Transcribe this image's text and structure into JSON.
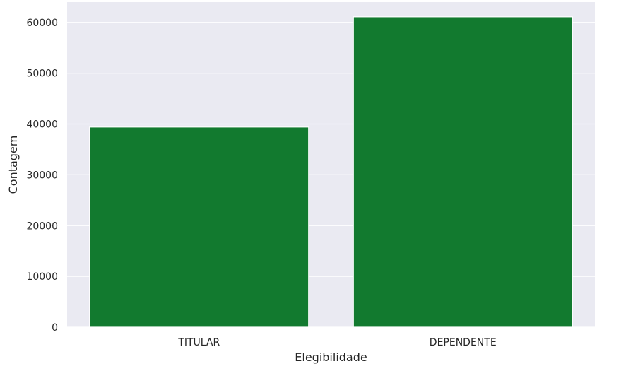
{
  "chart_data": {
    "type": "bar",
    "categories": [
      "TITULAR",
      "DEPENDENTE"
    ],
    "values": [
      39400,
      61100
    ],
    "xlabel": "Elegibilidade",
    "ylabel": "Contagem",
    "ylim": [
      0,
      64000
    ],
    "yticks": [
      0,
      10000,
      20000,
      30000,
      40000,
      50000,
      60000
    ],
    "ytick_labels": [
      "0",
      "10000",
      "20000",
      "30000",
      "40000",
      "50000",
      "60000"
    ],
    "grid": true,
    "colors": {
      "bar": "#127a2f",
      "background": "#eaeaf2",
      "grid": "#ffffff"
    }
  }
}
